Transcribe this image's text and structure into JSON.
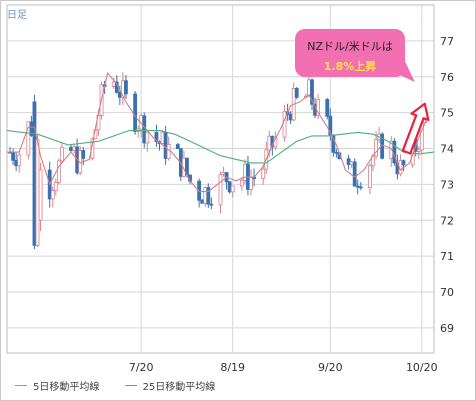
{
  "period_label": "日足",
  "annotation": {
    "line1": "NZドル/米ドルは",
    "line2": "1.8%上昇"
  },
  "legend": [
    {
      "name": "5日移動平均線",
      "color": "#d07f87"
    },
    {
      "name": "25日移動平均線",
      "color": "#4fb07e"
    }
  ],
  "colors": {
    "up": "#d9828e",
    "down": "#3a72b0",
    "grid": "#d6d6d6",
    "arrow": "#e8233d"
  },
  "chart_data": {
    "type": "candlestick",
    "title": "",
    "xlabel": "",
    "ylabel": "",
    "y_axis_position": "right",
    "ylim": [
      68.3,
      78.0
    ],
    "yticks": [
      69,
      70,
      71,
      72,
      73,
      74,
      75,
      76,
      77
    ],
    "xticks": [
      {
        "label": "7/20",
        "day": 44
      },
      {
        "label": "8/19",
        "day": 74
      },
      {
        "label": "9/20",
        "day": 106
      },
      {
        "label": "10/20",
        "day": 136
      }
    ],
    "x_domain_days": [
      0,
      140
    ],
    "grid": true,
    "legend_position": "bottom",
    "series": [
      {
        "name": "5日移動平均線",
        "values_day_price": [
          [
            0,
            73.9
          ],
          [
            4,
            73.9
          ],
          [
            7,
            74.6
          ],
          [
            9,
            74.6
          ],
          [
            11,
            73.8
          ],
          [
            14,
            73.0
          ],
          [
            17,
            73.5
          ],
          [
            21,
            73.9
          ],
          [
            24,
            73.6
          ],
          [
            27,
            73.7
          ],
          [
            30,
            75.0
          ],
          [
            33,
            76.1
          ],
          [
            36,
            75.8
          ],
          [
            39,
            75.3
          ],
          [
            42,
            74.9
          ],
          [
            45,
            74.6
          ],
          [
            48,
            74.3
          ],
          [
            51,
            74.1
          ],
          [
            54,
            73.9
          ],
          [
            57,
            73.6
          ],
          [
            60,
            73.1
          ],
          [
            63,
            72.8
          ],
          [
            66,
            72.8
          ],
          [
            69,
            73.0
          ],
          [
            72,
            73.2
          ],
          [
            75,
            73.1
          ],
          [
            78,
            73.2
          ],
          [
            81,
            73.2
          ],
          [
            84,
            73.5
          ],
          [
            87,
            74.1
          ],
          [
            90,
            74.6
          ],
          [
            93,
            75.2
          ],
          [
            96,
            75.3
          ],
          [
            99,
            75.5
          ],
          [
            102,
            75.0
          ],
          [
            105,
            74.6
          ],
          [
            108,
            74.1
          ],
          [
            111,
            73.4
          ],
          [
            114,
            73.2
          ],
          [
            117,
            73.4
          ],
          [
            120,
            73.8
          ],
          [
            123,
            74.1
          ],
          [
            126,
            74.0
          ],
          [
            129,
            73.4
          ],
          [
            132,
            73.6
          ],
          [
            135,
            74.3
          ],
          [
            138,
            74.9
          ]
        ]
      },
      {
        "name": "25日移動平均線",
        "values_day_price": [
          [
            0,
            74.5
          ],
          [
            10,
            74.4
          ],
          [
            20,
            74.1
          ],
          [
            30,
            74.2
          ],
          [
            40,
            74.5
          ],
          [
            50,
            74.5
          ],
          [
            55,
            74.4
          ],
          [
            60,
            74.2
          ],
          [
            65,
            74.0
          ],
          [
            70,
            73.8
          ],
          [
            75,
            73.7
          ],
          [
            80,
            73.6
          ],
          [
            85,
            73.6
          ],
          [
            90,
            73.9
          ],
          [
            95,
            74.2
          ],
          [
            100,
            74.35
          ],
          [
            105,
            74.35
          ],
          [
            110,
            74.4
          ],
          [
            115,
            74.45
          ],
          [
            120,
            74.4
          ],
          [
            125,
            74.2
          ],
          [
            130,
            73.9
          ],
          [
            135,
            73.85
          ],
          [
            140,
            73.9
          ]
        ]
      }
    ],
    "annotation_arrow": {
      "from_day_price": [
        131,
        73.9
      ],
      "to_day_price": [
        137,
        75.25
      ]
    }
  }
}
